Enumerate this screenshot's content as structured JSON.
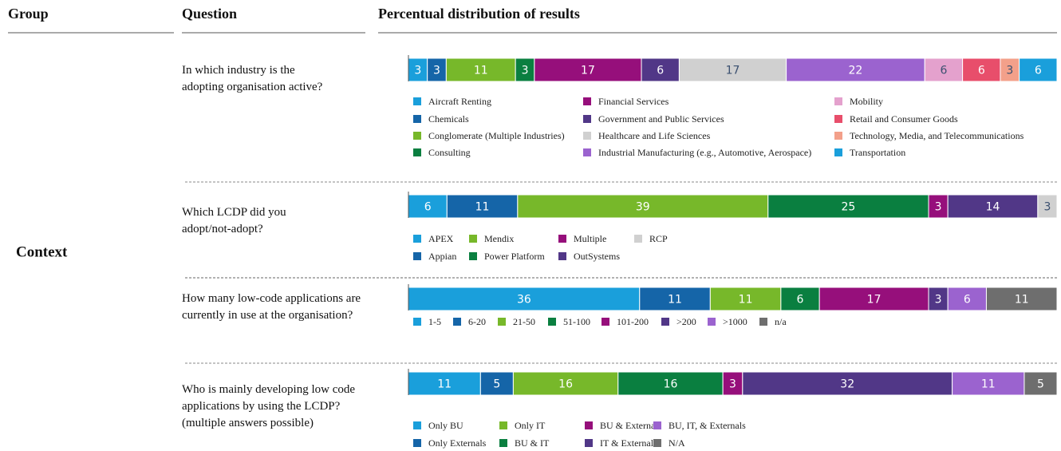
{
  "header": {
    "group": "Group",
    "question": "Question",
    "results": "Percentual distribution of results"
  },
  "group": "Context",
  "chart_data": [
    {
      "type": "bar",
      "stacked": true,
      "orientation": "horizontal",
      "title": "In which industry is the adopting organisation active?",
      "series": [
        {
          "name": "Aircraft Renting",
          "color": "#1a9fdb",
          "values": [
            3
          ]
        },
        {
          "name": "Chemicals",
          "color": "#1565a8",
          "values": [
            3
          ]
        },
        {
          "name": "Conglomerate (Multiple Industries)",
          "color": "#77b82a",
          "values": [
            11
          ]
        },
        {
          "name": "Consulting",
          "color": "#0a7f40",
          "values": [
            3
          ]
        },
        {
          "name": "Financial Services",
          "color": "#960f7b",
          "values": [
            17
          ]
        },
        {
          "name": "Government and Public Services",
          "color": "#513787",
          "values": [
            6
          ]
        },
        {
          "name": "Healthcare and Life Sciences",
          "color": "#d0d0d0",
          "values": [
            17
          ]
        },
        {
          "name": "Industrial Manufacturing (e.g., Automotive, Aerospace)",
          "color": "#9b63cf",
          "values": [
            22
          ]
        },
        {
          "name": "Mobility",
          "color": "#e4a1cd",
          "values": [
            6
          ]
        },
        {
          "name": "Retail and Consumer Goods",
          "color": "#e84e6b",
          "values": [
            6
          ]
        },
        {
          "name": "Technology, Media, and Telecommunications",
          "color": "#f3a08a",
          "values": [
            3
          ]
        },
        {
          "name": "Transportation",
          "color": "#1a9fdb",
          "values": [
            6
          ]
        }
      ]
    },
    {
      "type": "bar",
      "stacked": true,
      "orientation": "horizontal",
      "title": "Which LCDP did you adopt/not-adopt?",
      "series": [
        {
          "name": "APEX",
          "color": "#1a9fdb",
          "values": [
            6
          ]
        },
        {
          "name": "Appian",
          "color": "#1565a8",
          "values": [
            11
          ]
        },
        {
          "name": "Mendix",
          "color": "#77b82a",
          "values": [
            39
          ]
        },
        {
          "name": "Power Platform",
          "color": "#0a7f40",
          "values": [
            25
          ]
        },
        {
          "name": "Multiple",
          "color": "#960f7b",
          "values": [
            3
          ]
        },
        {
          "name": "OutSystems",
          "color": "#513787",
          "values": [
            14
          ]
        },
        {
          "name": "RCP",
          "color": "#d0d0d0",
          "values": [
            3
          ]
        }
      ]
    },
    {
      "type": "bar",
      "stacked": true,
      "orientation": "horizontal",
      "title": "How many low-code applications are currently in use at the organisation?",
      "series": [
        {
          "name": "1-5",
          "color": "#1a9fdb",
          "values": [
            36
          ]
        },
        {
          "name": "6-20",
          "color": "#1565a8",
          "values": [
            11
          ]
        },
        {
          "name": "21-50",
          "color": "#77b82a",
          "values": [
            11
          ]
        },
        {
          "name": "51-100",
          "color": "#0a7f40",
          "values": [
            6
          ]
        },
        {
          "name": "101-200",
          "color": "#960f7b",
          "values": [
            17
          ]
        },
        {
          "name": ">200",
          "color": "#513787",
          "values": [
            3
          ]
        },
        {
          "name": ">1000",
          "color": "#9b63cf",
          "values": [
            6
          ]
        },
        {
          "name": "n/a",
          "color": "#6e6e6e",
          "values": [
            11
          ]
        }
      ]
    },
    {
      "type": "bar",
      "stacked": true,
      "orientation": "horizontal",
      "title": "Who is mainly developing low code applications by using the LCDP? (multiple answers possible)",
      "series": [
        {
          "name": "Only BU",
          "color": "#1a9fdb",
          "values": [
            11
          ]
        },
        {
          "name": "Only Externals",
          "color": "#1565a8",
          "values": [
            5
          ]
        },
        {
          "name": "Only IT",
          "color": "#77b82a",
          "values": [
            16
          ]
        },
        {
          "name": "BU & IT",
          "color": "#0a7f40",
          "values": [
            16
          ]
        },
        {
          "name": "BU & Externals",
          "color": "#960f7b",
          "values": [
            3
          ]
        },
        {
          "name": "IT & Externals",
          "color": "#513787",
          "values": [
            32
          ]
        },
        {
          "name": "BU, IT, & Externals",
          "color": "#9b63cf",
          "values": [
            11
          ]
        },
        {
          "name": "N/A",
          "color": "#6e6e6e",
          "values": [
            5
          ]
        }
      ]
    }
  ]
}
